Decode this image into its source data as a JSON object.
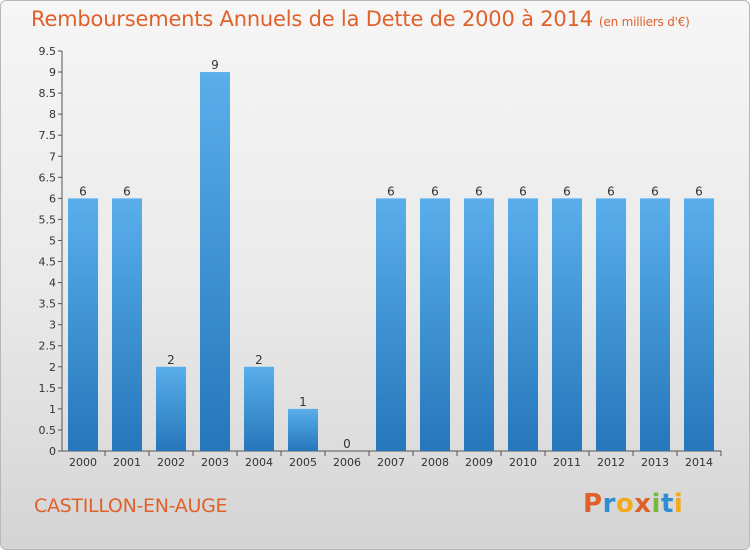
{
  "title": "Remboursements Annuels de la Dette de 2000 à 2014",
  "subtitle": "(en milliers d'€)",
  "location": "CASTILLON-EN-AUGE",
  "brand": "Proxiti",
  "colors": {
    "accent": "#e0612a",
    "bar_light": "#5aaeea",
    "bar_dark": "#2577ba"
  },
  "chart_data": {
    "type": "bar",
    "title": "Remboursements Annuels de la Dette de 2000 à 2014",
    "xlabel": "",
    "ylabel": "",
    "categories": [
      "2000",
      "2001",
      "2002",
      "2003",
      "2004",
      "2005",
      "2006",
      "2007",
      "2008",
      "2009",
      "2010",
      "2011",
      "2012",
      "2013",
      "2014"
    ],
    "values": [
      6,
      6,
      2,
      9,
      2,
      1,
      0,
      6,
      6,
      6,
      6,
      6,
      6,
      6,
      6
    ],
    "data_labels": [
      "6",
      "6",
      "2",
      "9",
      "2",
      "1",
      "0",
      "6",
      "6",
      "6",
      "6",
      "6",
      "6",
      "6",
      "6"
    ],
    "ylim": [
      0,
      9.5
    ],
    "y_ticks": [
      "0",
      "0.5",
      "1",
      "1.5",
      "2",
      "2.5",
      "3",
      "3.5",
      "4",
      "4.5",
      "5",
      "5.5",
      "6",
      "6.5",
      "7",
      "7.5",
      "8",
      "8.5",
      "9",
      "9.5"
    ],
    "grid": false,
    "legend": "none"
  }
}
